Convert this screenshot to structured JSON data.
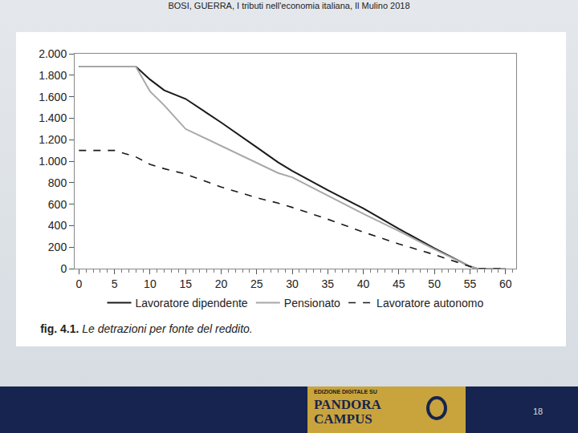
{
  "chart_data": {
    "type": "line",
    "title": "fig. 4.1. Le detrazioni per fonte del reddito.",
    "x": [
      0,
      5,
      8,
      10,
      12,
      15,
      20,
      25,
      28,
      30,
      35,
      40,
      45,
      50,
      55,
      56,
      60
    ],
    "series": [
      {
        "name": "Lavoratore dipendente",
        "color": "#1a1a1a",
        "line_style": "solid",
        "values": [
          1880,
          1880,
          1880,
          1760,
          1660,
          1580,
          1360,
          1130,
          990,
          910,
          730,
          560,
          370,
          190,
          20,
          0,
          0
        ]
      },
      {
        "name": "Pensionato",
        "color": "#a8a8a8",
        "line_style": "solid",
        "values": [
          1880,
          1880,
          1880,
          1650,
          1520,
          1300,
          1140,
          980,
          890,
          850,
          680,
          510,
          350,
          180,
          20,
          0,
          0
        ]
      },
      {
        "name": "Lavoratore autonomo",
        "color": "#1a1a1a",
        "line_style": "dash",
        "values": [
          1100,
          1100,
          1040,
          970,
          930,
          880,
          760,
          660,
          610,
          570,
          460,
          340,
          230,
          130,
          20,
          0,
          0
        ]
      }
    ],
    "xlim": [
      -0.6,
      61.5
    ],
    "xticks": [
      0,
      5,
      10,
      15,
      20,
      25,
      30,
      35,
      40,
      45,
      50,
      55,
      60
    ],
    "ylim": [
      0,
      2000
    ],
    "yticks": [
      0,
      200,
      400,
      600,
      800,
      {
        "value": 1000,
        "label": "1.000"
      },
      {
        "value": 1200,
        "label": "1.200"
      },
      {
        "value": 1400,
        "label": "1.400"
      },
      {
        "value": 1600,
        "label": "1.600"
      },
      {
        "value": 1800,
        "label": "1.800"
      },
      {
        "value": 2000,
        "label": "2.000"
      }
    ],
    "grid": false,
    "legend": "bottom"
  },
  "slide": {
    "header": "BOSI, GUERRA, I tributi nell'economia italiana, Il Mulino 2018",
    "logo_lines": [
      "EDIZIONE DIGITALE SU",
      "PANDORA",
      "CAMPUS"
    ],
    "page_number": 18
  }
}
